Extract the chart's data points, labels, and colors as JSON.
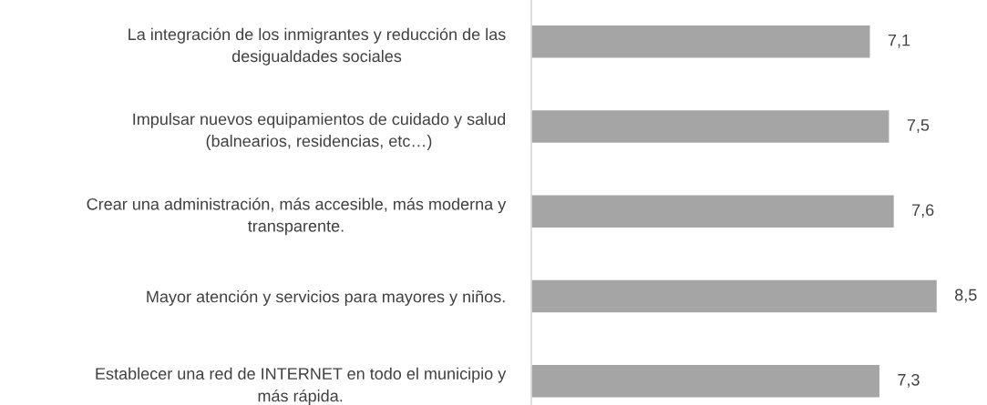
{
  "chart_data": {
    "type": "bar",
    "orientation": "horizontal",
    "categories": [
      "La integración de los inmigrantes y reducción de las\ndesigualdades sociales",
      "Impulsar nuevos equipamientos de cuidado y salud\n(balnearios, residencias, etc…)",
      "Crear una administración, más accesible, más moderna y\ntransparente.",
      "Mayor atención y servicios para mayores y niños.",
      "Establecer una red de INTERNET en todo el municipio y\nmás rápida."
    ],
    "values": [
      7.1,
      7.5,
      7.6,
      8.5,
      7.3
    ],
    "color": "#a5a5a5",
    "value_labels": [
      "7,1",
      "7,5",
      "7,6",
      "8,5",
      "7,3"
    ],
    "tick_labels": "y"
  }
}
